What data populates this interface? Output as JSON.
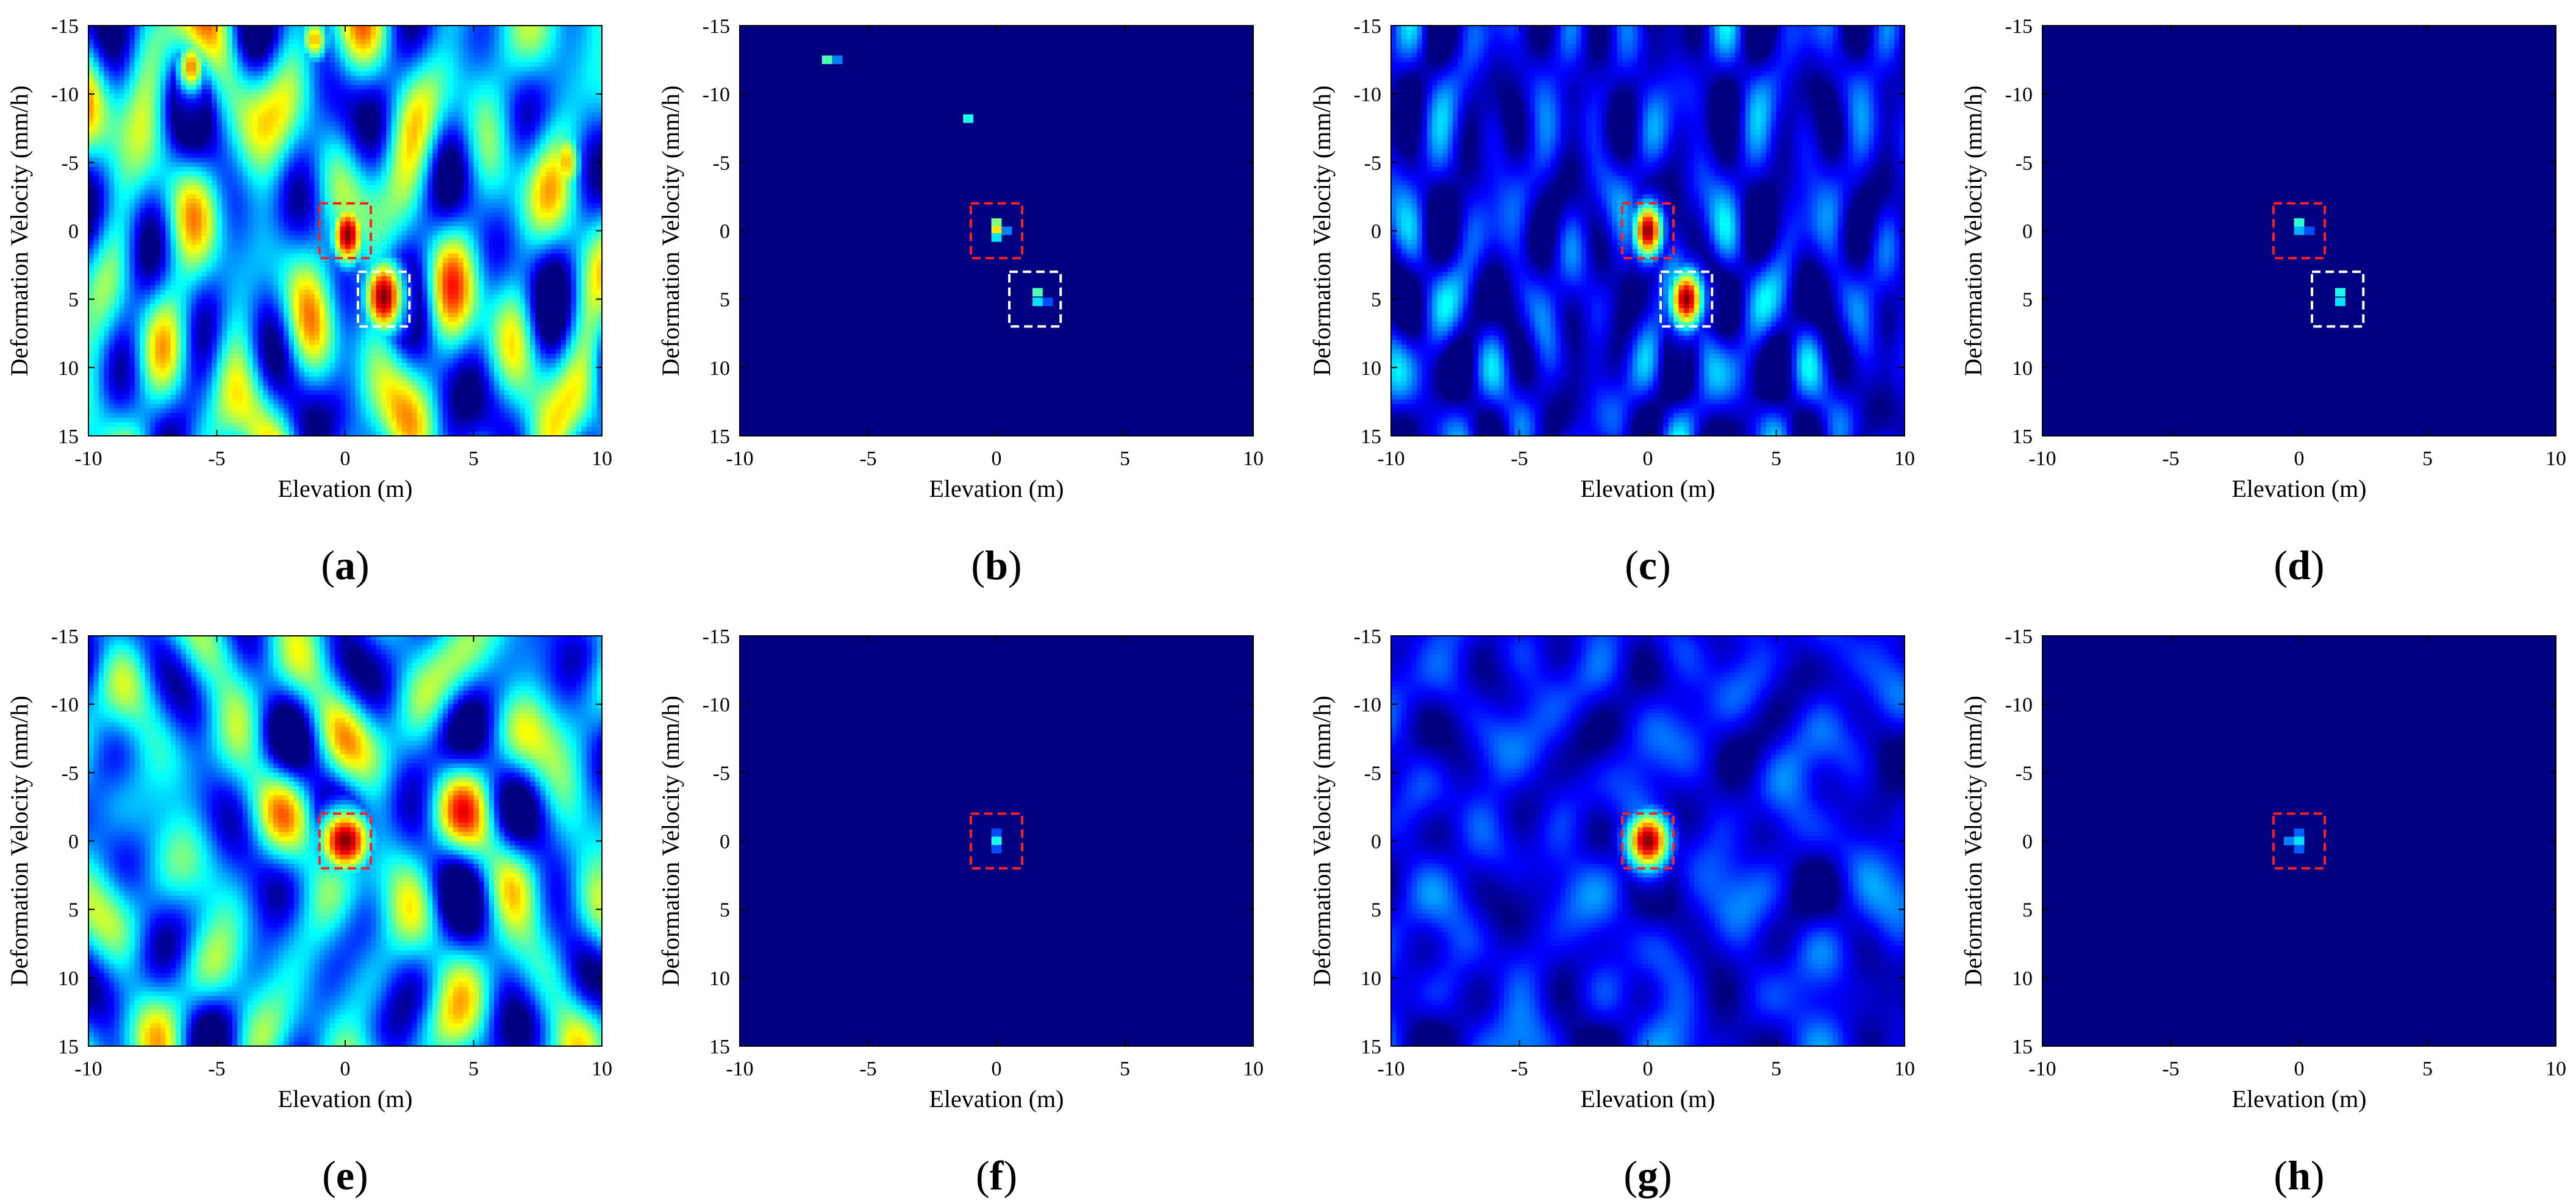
{
  "colors": {
    "background": "#00008f",
    "frame": "#000000",
    "red_box": "#ff2020",
    "white_box": "#ffffff"
  },
  "colormap": "jet",
  "chart_data": [
    {
      "id": "a",
      "caption": "(a)",
      "type": "heatmap",
      "xlabel": "Elevation (m)",
      "ylabel": "Deformation Velocity (mm/h)",
      "xlim": [
        -10,
        10
      ],
      "ylim": [
        -15,
        15
      ],
      "y_reversed": true,
      "xticks": [
        "-10",
        "-5",
        "0",
        "5",
        "10"
      ],
      "yticks": [
        "-15",
        "-10",
        "-5",
        "0",
        "5",
        "10",
        "15"
      ],
      "background_level": 0.32,
      "noise_level": 0.55,
      "noise_scale": [
        1.2,
        2.4
      ],
      "noise_seed": 11,
      "peaks": [
        {
          "x": 0.1,
          "y": 0.3,
          "value": 1.0,
          "sx": 0.45,
          "sy": 1.6
        },
        {
          "x": 1.5,
          "y": 4.8,
          "value": 1.0,
          "sx": 0.55,
          "sy": 2.0
        },
        {
          "x": -6.0,
          "y": -12.0,
          "value": 0.75,
          "sx": 0.4,
          "sy": 1.4
        },
        {
          "x": -1.2,
          "y": -14.0,
          "value": 0.7,
          "sx": 0.4,
          "sy": 1.2
        },
        {
          "x": 8.6,
          "y": -5.0,
          "value": 0.7,
          "sx": 0.4,
          "sy": 1.8
        },
        {
          "x": -7.0,
          "y": 8.5,
          "value": 0.68,
          "sx": 0.4,
          "sy": 1.8
        }
      ],
      "pixels": [],
      "boxes": [
        {
          "color": "red",
          "x": [
            -1.0,
            1.0
          ],
          "y": [
            -2.0,
            2.0
          ]
        },
        {
          "color": "white",
          "x": [
            0.5,
            2.5
          ],
          "y": [
            3.0,
            7.0
          ]
        }
      ]
    },
    {
      "id": "b",
      "caption": "(b)",
      "type": "heatmap",
      "xlabel": "Elevation (m)",
      "ylabel": "Deformation Velocity (mm/h)",
      "xlim": [
        -10,
        10
      ],
      "ylim": [
        -15,
        15
      ],
      "y_reversed": true,
      "xticks": [
        "-10",
        "-5",
        "0",
        "5",
        "10"
      ],
      "yticks": [
        "-15",
        "-10",
        "-5",
        "0",
        "5",
        "10",
        "15"
      ],
      "background_level": 0.0,
      "noise_level": 0.0,
      "noise_scale": [
        1,
        1
      ],
      "noise_seed": 1,
      "peaks": [],
      "pixels": [
        {
          "x": -6.6,
          "y": -12.5,
          "value": 0.45
        },
        {
          "x": -6.2,
          "y": -12.5,
          "value": 0.25
        },
        {
          "x": -1.1,
          "y": -8.2,
          "value": 0.4
        },
        {
          "x": 0.0,
          "y": -0.6,
          "value": 0.5
        },
        {
          "x": 0.0,
          "y": 0.0,
          "value": 0.65
        },
        {
          "x": 0.4,
          "y": 0.0,
          "value": 0.25
        },
        {
          "x": 0.0,
          "y": 0.5,
          "value": 0.35
        },
        {
          "x": 1.6,
          "y": 4.5,
          "value": 0.45
        },
        {
          "x": 1.6,
          "y": 5.2,
          "value": 0.35
        },
        {
          "x": 2.0,
          "y": 5.2,
          "value": 0.2
        }
      ],
      "boxes": [
        {
          "color": "red",
          "x": [
            -1.0,
            1.0
          ],
          "y": [
            -2.0,
            2.0
          ]
        },
        {
          "color": "white",
          "x": [
            0.5,
            2.5
          ],
          "y": [
            3.0,
            7.0
          ]
        }
      ]
    },
    {
      "id": "c",
      "caption": "(c)",
      "type": "heatmap",
      "xlabel": "Elevation (m)",
      "ylabel": "Deformation Velocity (mm/h)",
      "xlim": [
        -10,
        10
      ],
      "ylim": [
        -15,
        15
      ],
      "y_reversed": true,
      "xticks": [
        "-10",
        "-5",
        "0",
        "5",
        "10"
      ],
      "yticks": [
        "-15",
        "-10",
        "-5",
        "0",
        "5",
        "10",
        "15"
      ],
      "background_level": 0.1,
      "noise_level": 0.3,
      "noise_scale": [
        0.9,
        1.8
      ],
      "noise_seed": 23,
      "peaks": [
        {
          "x": 0.0,
          "y": 0.0,
          "value": 1.0,
          "sx": 0.4,
          "sy": 1.4
        },
        {
          "x": 1.5,
          "y": 5.0,
          "value": 1.0,
          "sx": 0.45,
          "sy": 1.5
        }
      ],
      "pixels": [],
      "boxes": [
        {
          "color": "red",
          "x": [
            -1.0,
            1.0
          ],
          "y": [
            -2.0,
            2.0
          ]
        },
        {
          "color": "white",
          "x": [
            0.5,
            2.5
          ],
          "y": [
            3.0,
            7.0
          ]
        }
      ]
    },
    {
      "id": "d",
      "caption": "(d)",
      "type": "heatmap",
      "xlabel": "Elevation (m)",
      "ylabel": "Deformation Velocity (mm/h)",
      "xlim": [
        -10,
        10
      ],
      "ylim": [
        -15,
        15
      ],
      "y_reversed": true,
      "xticks": [
        "-10",
        "-5",
        "0",
        "5",
        "10"
      ],
      "yticks": [
        "-15",
        "-10",
        "-5",
        "0",
        "5",
        "10",
        "15"
      ],
      "background_level": 0.0,
      "noise_level": 0.0,
      "noise_scale": [
        1,
        1
      ],
      "noise_seed": 1,
      "peaks": [],
      "pixels": [
        {
          "x": 0.0,
          "y": -0.6,
          "value": 0.42
        },
        {
          "x": 0.0,
          "y": 0.0,
          "value": 0.3
        },
        {
          "x": 0.4,
          "y": 0.0,
          "value": 0.2
        },
        {
          "x": 1.6,
          "y": 4.5,
          "value": 0.4
        },
        {
          "x": 1.6,
          "y": 5.2,
          "value": 0.35
        }
      ],
      "boxes": [
        {
          "color": "red",
          "x": [
            -1.0,
            1.0
          ],
          "y": [
            -2.0,
            2.0
          ]
        },
        {
          "color": "white",
          "x": [
            0.5,
            2.5
          ],
          "y": [
            3.0,
            7.0
          ]
        }
      ]
    },
    {
      "id": "e",
      "caption": "(e)",
      "type": "heatmap",
      "xlabel": "Elevation (m)",
      "ylabel": "Deformation Velocity (mm/h)",
      "xlim": [
        -10,
        10
      ],
      "ylim": [
        -15,
        15
      ],
      "y_reversed": true,
      "xticks": [
        "-10",
        "-5",
        "0",
        "5",
        "10"
      ],
      "yticks": [
        "-15",
        "-10",
        "-5",
        "0",
        "5",
        "10",
        "15"
      ],
      "background_level": 0.3,
      "noise_level": 0.5,
      "noise_scale": [
        1.4,
        1.6
      ],
      "noise_seed": 37,
      "peaks": [
        {
          "x": 0.0,
          "y": 0.0,
          "value": 1.0,
          "sx": 0.75,
          "sy": 1.7
        }
      ],
      "pixels": [],
      "boxes": [
        {
          "color": "red",
          "x": [
            -1.0,
            1.0
          ],
          "y": [
            -2.0,
            2.0
          ]
        }
      ]
    },
    {
      "id": "f",
      "caption": "(f)",
      "type": "heatmap",
      "xlabel": "Elevation (m)",
      "ylabel": "Deformation Velocity (mm/h)",
      "xlim": [
        -10,
        10
      ],
      "ylim": [
        -15,
        15
      ],
      "y_reversed": true,
      "xticks": [
        "-10",
        "-5",
        "0",
        "5",
        "10"
      ],
      "yticks": [
        "-15",
        "-10",
        "-5",
        "0",
        "5",
        "10",
        "15"
      ],
      "background_level": 0.0,
      "noise_level": 0.0,
      "noise_scale": [
        1,
        1
      ],
      "noise_seed": 1,
      "peaks": [],
      "pixels": [
        {
          "x": 0.0,
          "y": -0.6,
          "value": 0.2
        },
        {
          "x": 0.0,
          "y": 0.0,
          "value": 0.4
        },
        {
          "x": 0.0,
          "y": 0.6,
          "value": 0.2
        }
      ],
      "boxes": [
        {
          "color": "red",
          "x": [
            -1.0,
            1.0
          ],
          "y": [
            -2.0,
            2.0
          ]
        }
      ]
    },
    {
      "id": "g",
      "caption": "(g)",
      "type": "heatmap",
      "xlabel": "Elevation (m)",
      "ylabel": "Deformation Velocity (mm/h)",
      "xlim": [
        -10,
        10
      ],
      "ylim": [
        -15,
        15
      ],
      "y_reversed": true,
      "xticks": [
        "-10",
        "-5",
        "0",
        "5",
        "10"
      ],
      "yticks": [
        "-15",
        "-10",
        "-5",
        "0",
        "5",
        "10",
        "15"
      ],
      "background_level": 0.12,
      "noise_level": 0.18,
      "noise_scale": [
        1.3,
        1.7
      ],
      "noise_seed": 53,
      "peaks": [
        {
          "x": 0.0,
          "y": 0.0,
          "value": 1.0,
          "sx": 0.6,
          "sy": 1.5
        }
      ],
      "pixels": [],
      "boxes": [
        {
          "color": "red",
          "x": [
            -1.0,
            1.0
          ],
          "y": [
            -2.0,
            2.0
          ]
        }
      ]
    },
    {
      "id": "h",
      "caption": "(h)",
      "type": "heatmap",
      "xlabel": "Elevation (m)",
      "ylabel": "Deformation Velocity (mm/h)",
      "xlim": [
        -10,
        10
      ],
      "ylim": [
        -15,
        15
      ],
      "y_reversed": true,
      "xticks": [
        "-10",
        "-5",
        "0",
        "5",
        "10"
      ],
      "yticks": [
        "-15",
        "-10",
        "-5",
        "0",
        "5",
        "10",
        "15"
      ],
      "background_level": 0.0,
      "noise_level": 0.0,
      "noise_scale": [
        1,
        1
      ],
      "noise_seed": 1,
      "peaks": [],
      "pixels": [
        {
          "x": -0.4,
          "y": 0.0,
          "value": 0.25
        },
        {
          "x": 0.0,
          "y": -0.6,
          "value": 0.22
        },
        {
          "x": 0.0,
          "y": 0.0,
          "value": 0.35
        },
        {
          "x": 0.0,
          "y": 0.6,
          "value": 0.22
        }
      ],
      "boxes": [
        {
          "color": "red",
          "x": [
            -1.0,
            1.0
          ],
          "y": [
            -2.0,
            2.0
          ]
        }
      ]
    }
  ]
}
